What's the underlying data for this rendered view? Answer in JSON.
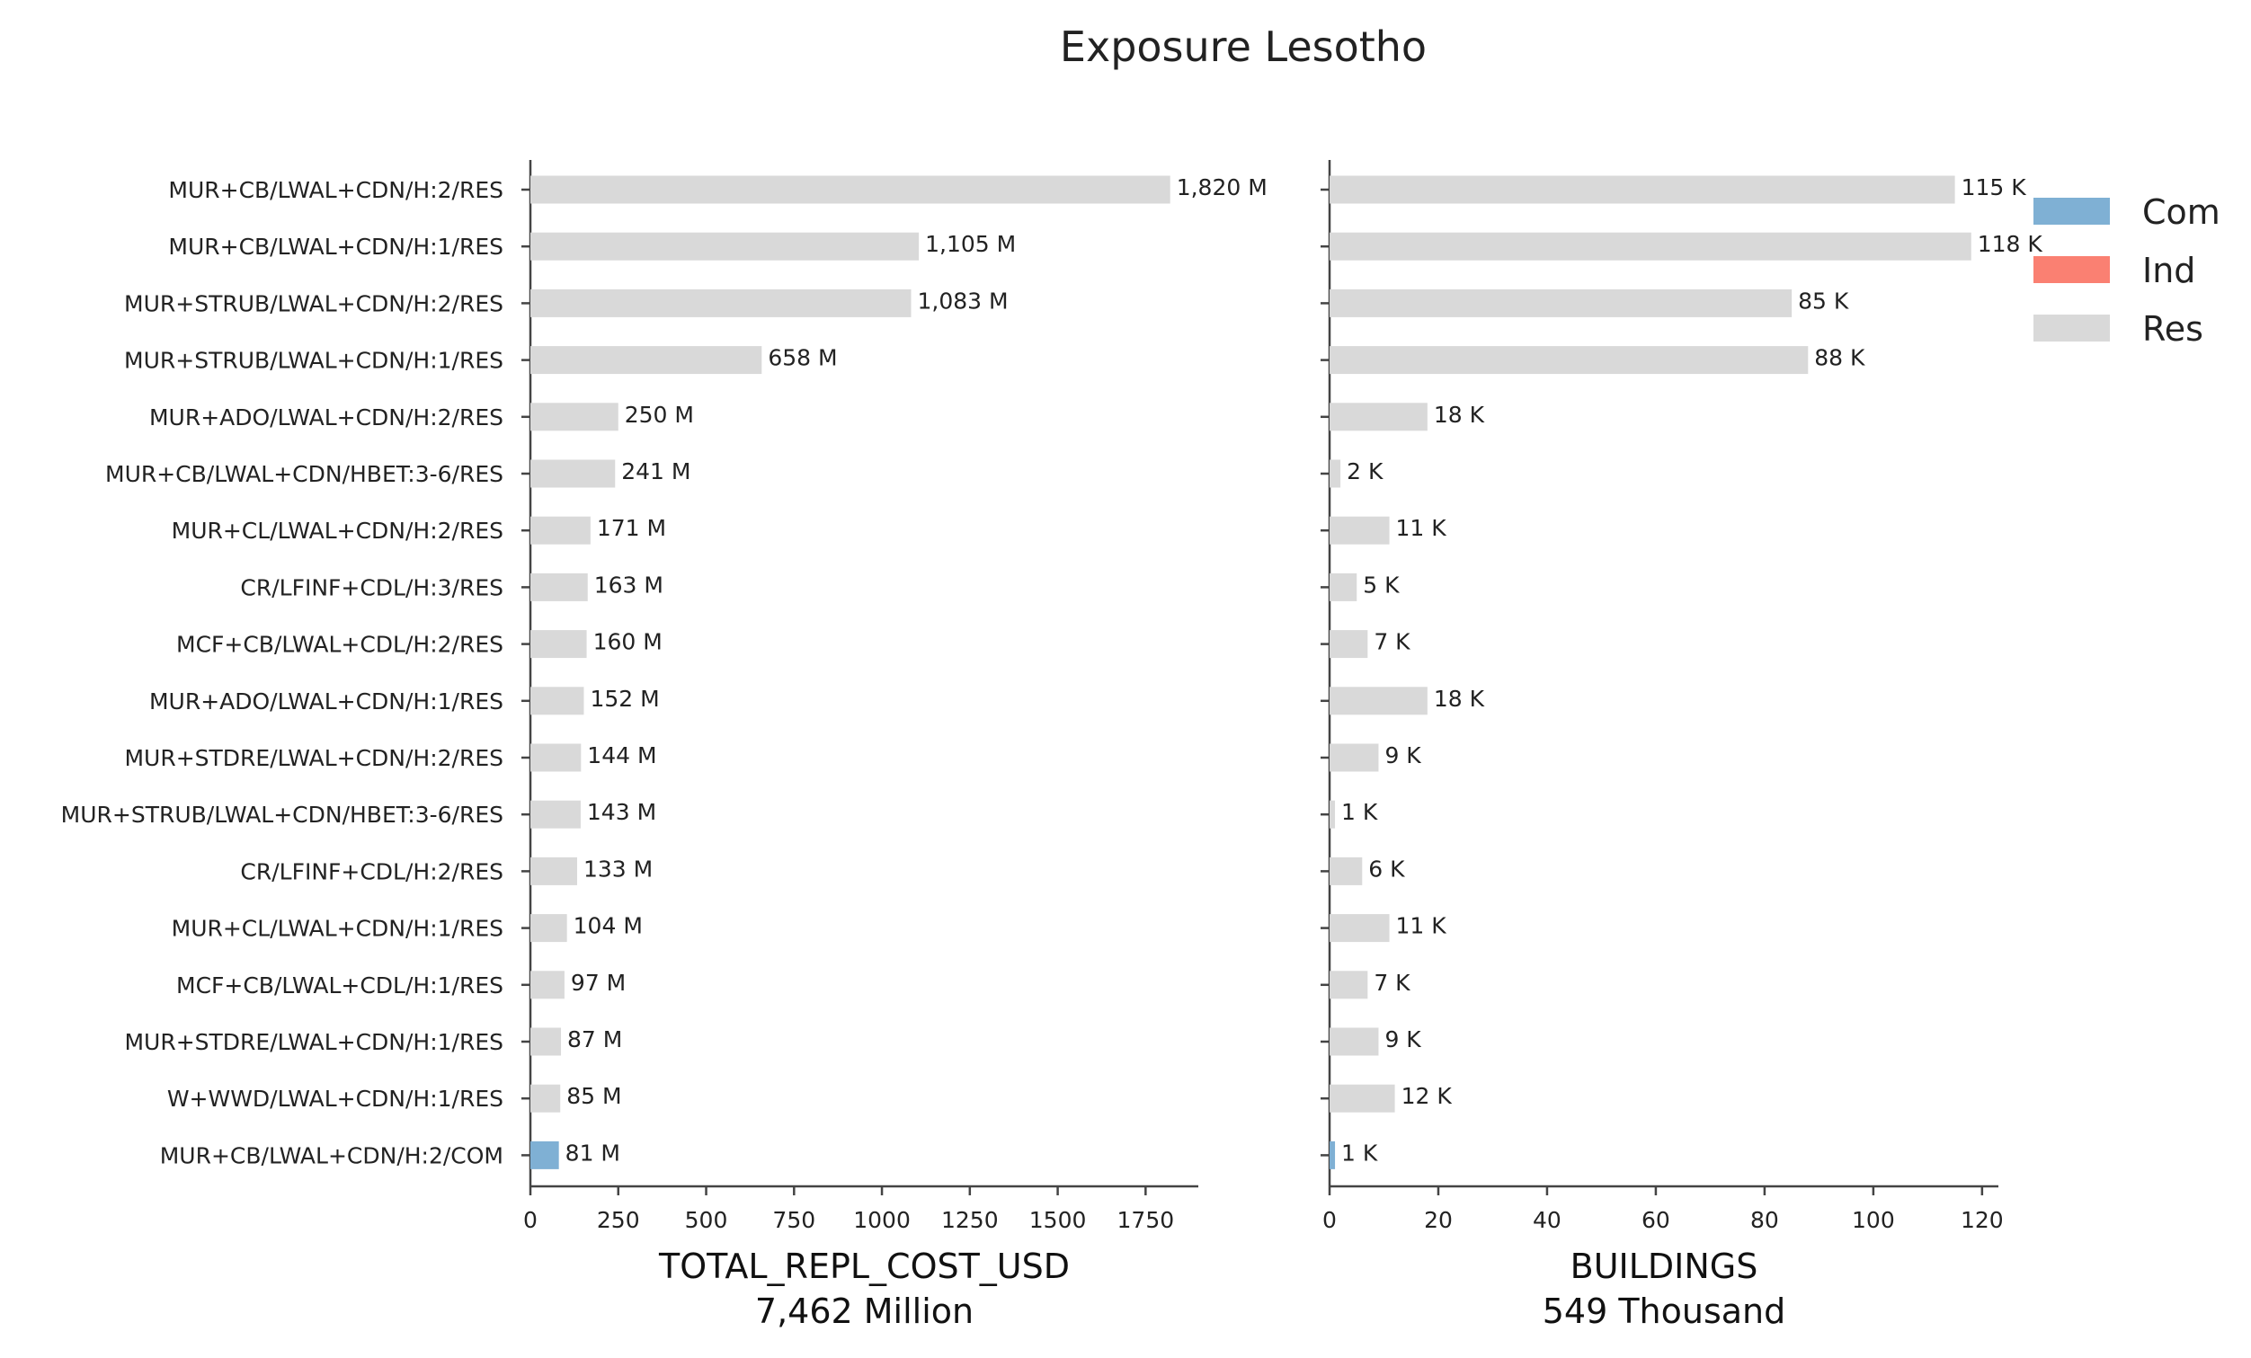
{
  "chart_data": {
    "type": "bar",
    "orientation": "horizontal",
    "title": "Exposure Lesotho",
    "categories": [
      "MUR+CB/LWAL+CDN/H:2/RES",
      "MUR+CB/LWAL+CDN/H:1/RES",
      "MUR+STRUB/LWAL+CDN/H:2/RES",
      "MUR+STRUB/LWAL+CDN/H:1/RES",
      "MUR+ADO/LWAL+CDN/H:2/RES",
      "MUR+CB/LWAL+CDN/HBET:3-6/RES",
      "MUR+CL/LWAL+CDN/H:2/RES",
      "CR/LFINF+CDL/H:3/RES",
      "MCF+CB/LWAL+CDL/H:2/RES",
      "MUR+ADO/LWAL+CDN/H:1/RES",
      "MUR+STDRE/LWAL+CDN/H:2/RES",
      "MUR+STRUB/LWAL+CDN/HBET:3-6/RES",
      "CR/LFINF+CDL/H:2/RES",
      "MUR+CL/LWAL+CDN/H:1/RES",
      "MCF+CB/LWAL+CDL/H:1/RES",
      "MUR+STDRE/LWAL+CDN/H:1/RES",
      "W+WWD/LWAL+CDN/H:1/RES",
      "MUR+CB/LWAL+CDN/H:2/COM"
    ],
    "occupancy": [
      "Res",
      "Res",
      "Res",
      "Res",
      "Res",
      "Res",
      "Res",
      "Res",
      "Res",
      "Res",
      "Res",
      "Res",
      "Res",
      "Res",
      "Res",
      "Res",
      "Res",
      "Com"
    ],
    "legend": {
      "position": "top-right",
      "entries": [
        {
          "name": "Com",
          "color": "#7fb0d4"
        },
        {
          "name": "Ind",
          "color": "#fa8072"
        },
        {
          "name": "Res",
          "color": "#d9d9d9"
        }
      ]
    },
    "panels": [
      {
        "xlabel": "TOTAL_REPL_COST_USD",
        "sublabel": "7,462 Million",
        "xlim": [
          0,
          1900
        ],
        "ticks": [
          0,
          250,
          500,
          750,
          1000,
          1250,
          1500,
          1750
        ],
        "values": [
          1820,
          1105,
          1083,
          658,
          250,
          241,
          171,
          163,
          160,
          152,
          144,
          143,
          133,
          104,
          97,
          87,
          85,
          81
        ],
        "labels": [
          "1,820 M",
          "1,105 M",
          "1,083 M",
          "658 M",
          "250 M",
          "241 M",
          "171 M",
          "163 M",
          "160 M",
          "152 M",
          "144 M",
          "143 M",
          "133 M",
          "104 M",
          "97 M",
          "87 M",
          "85 M",
          "81 M"
        ]
      },
      {
        "xlabel": "BUILDINGS",
        "sublabel": "549 Thousand",
        "xlim": [
          0,
          123
        ],
        "ticks": [
          0,
          20,
          40,
          60,
          80,
          100,
          120
        ],
        "values": [
          115,
          118,
          85,
          88,
          18,
          2,
          11,
          5,
          7,
          18,
          9,
          1,
          6,
          11,
          7,
          9,
          12,
          1
        ],
        "labels": [
          "115 K",
          "118 K",
          "85 K",
          "88 K",
          "18 K",
          "2 K",
          "11 K",
          "5 K",
          "7 K",
          "18 K",
          "9 K",
          "1 K",
          "6 K",
          "11 K",
          "7 K",
          "9 K",
          "12 K",
          "1 K"
        ]
      }
    ],
    "grid": false
  }
}
